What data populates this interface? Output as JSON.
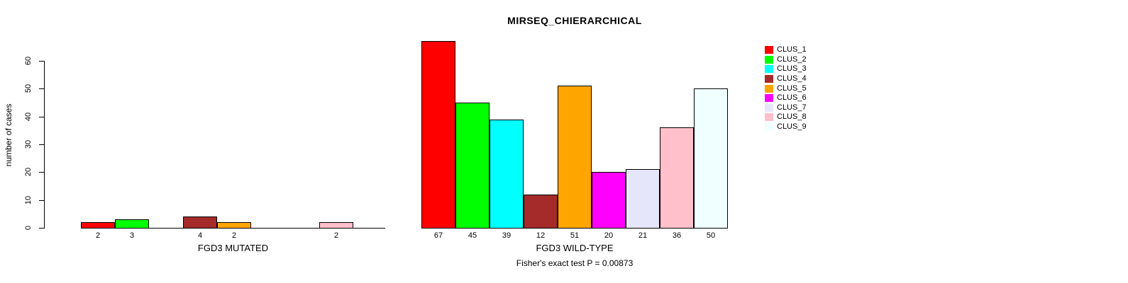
{
  "title": "MIRSEQ_CHIERARCHICAL",
  "footer": "Fisher's exact test P = 0.00873",
  "y_axis": {
    "label": "number of cases",
    "ticks": [
      0,
      10,
      20,
      30,
      40,
      50,
      60
    ]
  },
  "legend": {
    "items": [
      {
        "label": "CLUS_1",
        "color": "#FF0000"
      },
      {
        "label": "CLUS_2",
        "color": "#00FF00"
      },
      {
        "label": "CLUS_3",
        "color": "#00FFFF"
      },
      {
        "label": "CLUS_4",
        "color": "#A52A2A"
      },
      {
        "label": "CLUS_5",
        "color": "#FFA500"
      },
      {
        "label": "CLUS_6",
        "color": "#FF00FF"
      },
      {
        "label": "CLUS_7",
        "color": "#E6E6FA"
      },
      {
        "label": "CLUS_8",
        "color": "#FFC0CB"
      },
      {
        "label": "CLUS_9",
        "color": "#F0FFFF"
      }
    ]
  },
  "chart_data": [
    {
      "type": "bar",
      "panel": "FGD3 MUTATED",
      "title": "MIRSEQ_CHIERARCHICAL",
      "xlabel": "FGD3 MUTATED",
      "ylabel": "number of cases",
      "ylim": [
        0,
        67
      ],
      "grid": false,
      "legend_position": "right",
      "categories": [
        "CLUS_1",
        "CLUS_2",
        "CLUS_3",
        "CLUS_4",
        "CLUS_5",
        "CLUS_6",
        "CLUS_7",
        "CLUS_8",
        "CLUS_9"
      ],
      "values": [
        2,
        3,
        0,
        4,
        2,
        0,
        0,
        2,
        0
      ],
      "bar_labels": [
        "2",
        "3",
        "",
        "4",
        "2",
        "",
        "",
        "2",
        ""
      ]
    },
    {
      "type": "bar",
      "panel": "FGD3 WILD-TYPE",
      "xlabel": "FGD3 WILD-TYPE",
      "ylabel": "number of cases",
      "ylim": [
        0,
        67
      ],
      "grid": false,
      "legend_position": "right",
      "categories": [
        "CLUS_1",
        "CLUS_2",
        "CLUS_3",
        "CLUS_4",
        "CLUS_5",
        "CLUS_6",
        "CLUS_7",
        "CLUS_8",
        "CLUS_9"
      ],
      "values": [
        67,
        45,
        39,
        12,
        51,
        20,
        21,
        36,
        50
      ],
      "bar_labels": [
        "67",
        "45",
        "39",
        "12",
        "51",
        "20",
        "21",
        "36",
        "50"
      ]
    }
  ]
}
